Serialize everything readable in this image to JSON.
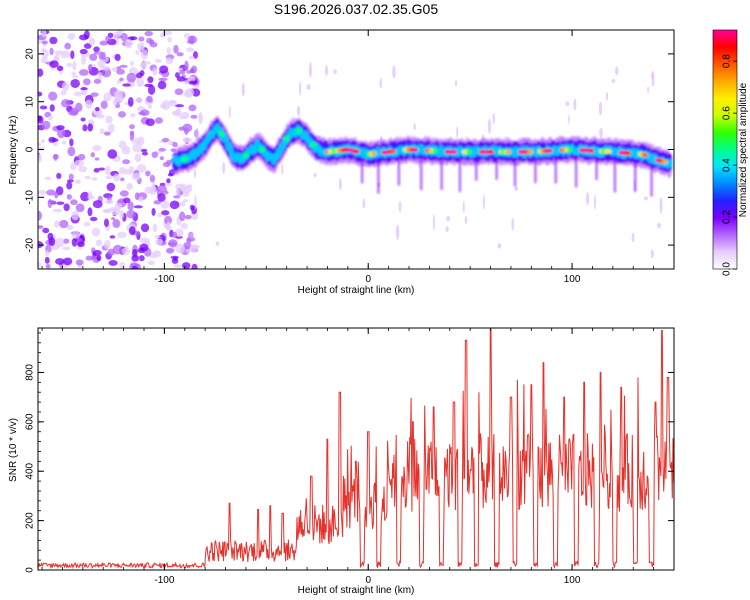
{
  "figure_title": "S196.2026.037.02.35.G05",
  "colors": {
    "snr_line": "#e8302a",
    "frame": "#000000",
    "background": "#ffffff"
  },
  "chart_data": [
    {
      "type": "heatmap",
      "title": "S196.2026.037.02.35.G05",
      "xlabel": "Height of straight line (km)",
      "ylabel": "Frequency (Hz)",
      "xlim": [
        -162,
        150
      ],
      "ylim": [
        -25,
        25
      ],
      "xticks": [
        -100,
        0,
        100
      ],
      "yticks": [
        -20,
        -10,
        0,
        10,
        20
      ],
      "colorbar": {
        "label": "Normalized spectral amplitude",
        "range": [
          0,
          0.92
        ],
        "ticks": [
          0.0,
          0.2,
          0.4,
          0.6,
          0.8
        ],
        "colormap": [
          "#ffffff",
          "#e6ccff",
          "#b266ff",
          "#7a00ff",
          "#2222ff",
          "#0088ff",
          "#00e5ff",
          "#00ff88",
          "#33ff00",
          "#ccff00",
          "#ffee00",
          "#ffaa00",
          "#ff5500",
          "#ff0000",
          "#ff0099"
        ]
      },
      "ridge": {
        "description": "frequency of maximum spectral amplitude vs height",
        "x": [
          -95,
          -90,
          -85,
          -80,
          -77,
          -74,
          -70,
          -66,
          -62,
          -58,
          -54,
          -50,
          -46,
          -42,
          -38,
          -34,
          -30,
          -25,
          -20,
          -10,
          0,
          20,
          40,
          60,
          80,
          100,
          120,
          135,
          140,
          145,
          148
        ],
        "y": [
          -2.5,
          -2.0,
          -1.0,
          1.0,
          3.0,
          4.5,
          2.0,
          -1.5,
          -2.0,
          -0.5,
          1.0,
          -1.0,
          -2.0,
          1.0,
          3.5,
          4.0,
          2.5,
          0.0,
          -0.5,
          0.0,
          -1.0,
          0.0,
          -0.5,
          -0.5,
          -0.5,
          0.0,
          -0.5,
          -1.0,
          -2.0,
          -2.5,
          -3.0
        ]
      },
      "noise_region": {
        "x_range": [
          -162,
          -90
        ],
        "description": "scattered low-amplitude spectral energy"
      }
    },
    {
      "type": "line",
      "xlabel": "Height of straight line (km)",
      "ylabel": "SNR (10 * v/v)",
      "xlim": [
        -162,
        150
      ],
      "ylim": [
        0,
        980
      ],
      "xticks": [
        -100,
        0,
        100
      ],
      "yticks": [
        0,
        200,
        400,
        600,
        800
      ],
      "series": [
        {
          "name": "SNR",
          "segments": [
            {
              "x_range": [
                -162,
                -80
              ],
              "base": 15,
              "spread": 20,
              "peaks": []
            },
            {
              "x_range": [
                -80,
                -35
              ],
              "base": 60,
              "spread": 90,
              "peaks": [
                [
                  -68,
                  270
                ],
                [
                  -54,
                  245
                ],
                [
                  -48,
                  260
                ],
                [
                  -42,
                  230
                ]
              ]
            },
            {
              "x_range": [
                -35,
                -12
              ],
              "base": 150,
              "spread": 170,
              "peaks": [
                [
                  -28,
                  380
                ],
                [
                  -20,
                  530
                ],
                [
                  -14,
                  720
                ]
              ]
            },
            {
              "x_range": [
                -12,
                10
              ],
              "base": 230,
              "spread": 230,
              "peaks": [
                [
                  -6,
                  440
                ],
                [
                  0,
                  560
                ],
                [
                  4,
                  500
                ]
              ]
            },
            {
              "x_range": [
                10,
                150
              ],
              "base": 330,
              "spread": 320,
              "peaks": [
                [
                  22,
                  600
                ],
                [
                  32,
                  660
                ],
                [
                  42,
                  680
                ],
                [
                  48,
                  930
                ],
                [
                  54,
                  720
                ],
                [
                  60,
                  975
                ],
                [
                  70,
                  700
                ],
                [
                  80,
                  750
                ],
                [
                  86,
                  840
                ],
                [
                  96,
                  700
                ],
                [
                  106,
                  760
                ],
                [
                  114,
                  800
                ],
                [
                  124,
                  740
                ],
                [
                  132,
                  780
                ],
                [
                  141,
                  680
                ],
                [
                  144,
                  970
                ],
                [
                  147,
                  780
                ]
              ]
            }
          ],
          "dropouts": [
            -3,
            5,
            15,
            26,
            36,
            45,
            53,
            63,
            72,
            82,
            92,
            102,
            112,
            121,
            131,
            139
          ]
        }
      ]
    }
  ]
}
